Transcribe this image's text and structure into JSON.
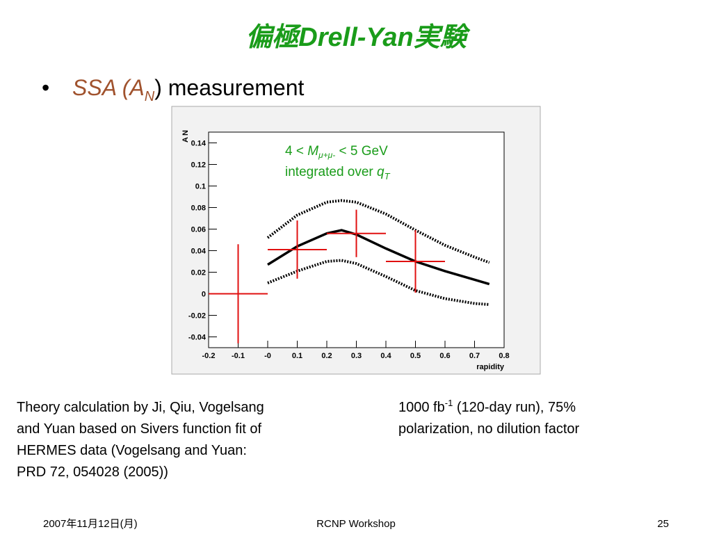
{
  "slide": {
    "title": "偏極Drell-Yan実験",
    "bullet": [
      "SSA (A",
      "N",
      ") measurement"
    ],
    "notes_left": [
      "Theory calculation by Ji, Qiu, Vogelsang",
      "and Yuan based on Sivers function fit of",
      "HERMES data (Vogelsang and Yuan:",
      "PRD 72, 054028 (2005))"
    ],
    "notes_right": {
      "line1": [
        "1000 fb",
        "-1",
        " (120-day run), 75%"
      ],
      "line2": "polarization, no dilution factor"
    },
    "footer": {
      "date": "2007年11月12日(月)",
      "event": "RCNP Workshop",
      "page": "25"
    }
  },
  "chart_data": {
    "type": "errorbar",
    "xlabel": "rapidity",
    "ylabel": [
      "A",
      "N"
    ],
    "annotation": {
      "line1": [
        "4 < ",
        "M",
        "μ+μ-",
        " < 5 GeV"
      ],
      "line2": [
        "integrated over ",
        "q",
        "T"
      ]
    },
    "xlim": [
      -0.2,
      0.8
    ],
    "ylim": [
      -0.05,
      0.15
    ],
    "xticks": [
      -0.2,
      -0.1,
      {
        "value": 0,
        "label": "-0"
      },
      0.1,
      0.2,
      0.3,
      0.4,
      0.5,
      0.6,
      0.7,
      0.8
    ],
    "yticks": [
      -0.04,
      -0.02,
      0,
      0.02,
      0.04,
      0.06,
      0.08,
      0.1,
      0.12,
      0.14
    ],
    "points": {
      "color": "#e01010",
      "x": [
        -0.1,
        0.1,
        0.3,
        0.5
      ],
      "values": [
        0,
        0.041,
        0.056,
        0.03
      ],
      "xerr": [
        0.1,
        0.1,
        0.1,
        0.1
      ],
      "yerr": [
        0.046,
        0.027,
        0.022,
        0.029
      ]
    },
    "curve_x": [
      0,
      0.1,
      0.2,
      0.25,
      0.3,
      0.4,
      0.5,
      0.6,
      0.7,
      0.75
    ],
    "series": [
      {
        "color": "#000000",
        "style": "solid",
        "values": [
          0.027,
          0.044,
          0.056,
          0.059,
          0.055,
          0.042,
          0.03,
          0.021,
          0.013,
          0.009
        ]
      },
      {
        "color": "#000000",
        "style": "dotted",
        "values": [
          0.052,
          0.073,
          0.085,
          0.0865,
          0.085,
          0.074,
          0.059,
          0.045,
          0.034,
          0.029
        ]
      },
      {
        "color": "#000000",
        "style": "dotted",
        "values": [
          0.01,
          0.021,
          0.03,
          0.031,
          0.028,
          0.016,
          0.003,
          -0.0045,
          -0.009,
          -0.01
        ]
      }
    ]
  }
}
